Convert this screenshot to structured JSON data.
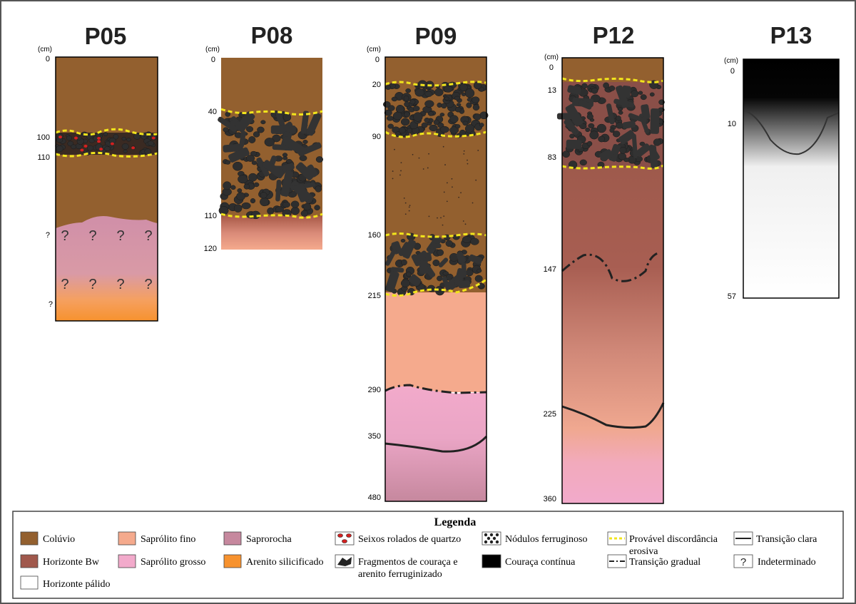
{
  "colors": {
    "coluvio": "#93602F",
    "horizonte_bw": "#A0584C",
    "horizonte_palido": "#FFFFFF",
    "saprolito_fino": "#F5AA8D",
    "saprolito_grosso": "#F2AACB",
    "saprorocha": "#C6889E",
    "arenito_silicificado": "#F7922E",
    "couraca": "#000000",
    "nodulos": "#2E2E2E",
    "seixos": "#D42020",
    "discordancia": "#F2E51C"
  },
  "unit_label": "(cm)",
  "profiles": {
    "p05": {
      "title": "P05",
      "ticks": [
        "0",
        "100",
        "110",
        "?",
        "?"
      ],
      "question_marks": [
        "?",
        "?",
        "?",
        "?",
        "?",
        "?",
        "?",
        "?"
      ]
    },
    "p08": {
      "title": "P08",
      "ticks": [
        "0",
        "40",
        "110",
        "120"
      ]
    },
    "p09": {
      "title": "P09",
      "ticks": [
        "0",
        "20",
        "90",
        "160",
        "215",
        "290",
        "350",
        "480"
      ]
    },
    "p12": {
      "title": "P12",
      "ticks": [
        "0",
        "13",
        "83",
        "147",
        "225",
        "360"
      ]
    },
    "p13": {
      "title": "P13",
      "ticks": [
        "0",
        "10",
        "57"
      ]
    }
  },
  "legend": {
    "title": "Legenda",
    "coluvio": "Colúvio",
    "horizonte_bw": "Horizonte Bw",
    "horizonte_palido": "Horizonte pálido",
    "saprolito_fino": "Saprólito fino",
    "saprolito_grosso": "Saprólito grosso",
    "saprorocha": "Saprorocha",
    "arenito_silicificado": "Arenito silicificado",
    "seixos": "Seixos rolados de quartzo",
    "fragmentos_line1": "Fragmentos de couraça e",
    "fragmentos_line2": "arenito ferruginizado",
    "nodulos": "Nódulos ferruginoso",
    "couraca": "Couraça contínua",
    "discordancia_line1": "Provável discordância",
    "discordancia_line2": "erosiva",
    "transicao_gradual": "Transição gradual",
    "transicao_clara": "Transição clara",
    "indeterminado": "Indeterminado",
    "indeterminado_symbol": "?"
  }
}
